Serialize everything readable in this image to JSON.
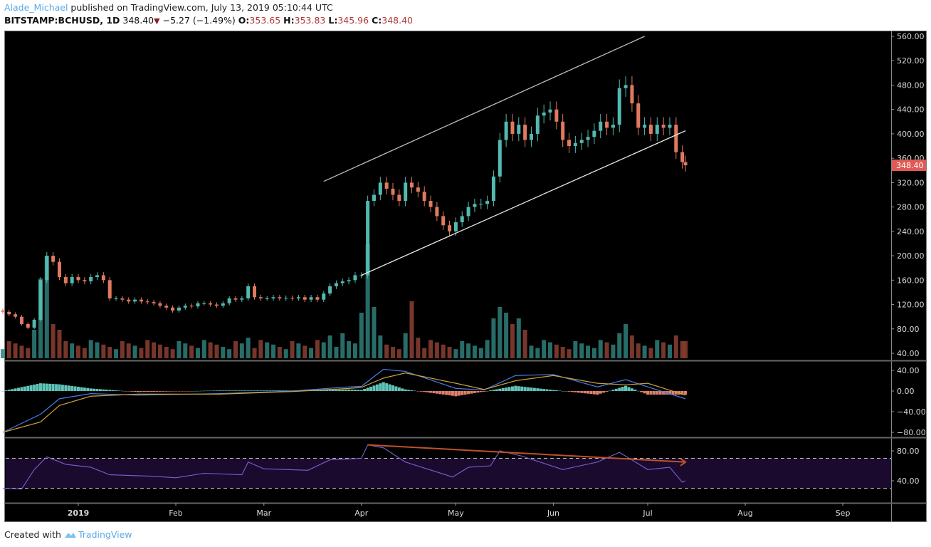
{
  "header": {
    "author": "Alade_Michael",
    "published": "published on TradingView.com, July 13, 2019 05:10:44 UTC",
    "symbol": "BITSTAMP:BCHUSD, 1D",
    "last": "348.40",
    "change": "−5.27 (−1.49%)",
    "o_label": "O:",
    "o": "353.65",
    "h_label": "H:",
    "h": "353.83",
    "l_label": "L:",
    "l": "345.96",
    "c_label": "C:",
    "c": "348.40",
    "down_icon": "triangle-down"
  },
  "footer": {
    "created_with": "Created with",
    "brand": "TradingView"
  },
  "chart_data": {
    "type": "candlestick",
    "title": "BITSTAMP:BCHUSD, 1D",
    "colors": {
      "up": "#53b9b0",
      "down": "#e07a5f",
      "background": "#000000",
      "last_price_tag": "#e05a55",
      "macd": "#4a7be8",
      "signal": "#c9a13a",
      "rsi": "#7b5fd0",
      "rsi_band": "#1a0a2e",
      "divergence": "#c0502a"
    },
    "ylim": [
      40,
      560
    ],
    "y_ticks": [
      "560.00",
      "520.00",
      "480.00",
      "440.00",
      "400.00",
      "360.00",
      "320.00",
      "280.00",
      "240.00",
      "200.00",
      "160.00",
      "120.00",
      "80.00",
      "40.00"
    ],
    "last_price_label": "348.40",
    "x_ticks": [
      {
        "label": "2019",
        "date": "2019-01-01"
      },
      {
        "label": "Feb",
        "date": "2019-02-01"
      },
      {
        "label": "Mar",
        "date": "2019-03-01"
      },
      {
        "label": "Apr",
        "date": "2019-04-01"
      },
      {
        "label": "May",
        "date": "2019-05-01"
      },
      {
        "label": "Jun",
        "date": "2019-06-01"
      },
      {
        "label": "Jul",
        "date": "2019-07-01"
      },
      {
        "label": "Aug",
        "date": "2019-08-01"
      },
      {
        "label": "Sep",
        "date": "2019-09-01"
      }
    ],
    "closes": [
      [
        "2018-12-08",
        108
      ],
      [
        "2018-12-10",
        104
      ],
      [
        "2018-12-12",
        100
      ],
      [
        "2018-12-14",
        88
      ],
      [
        "2018-12-16",
        82
      ],
      [
        "2018-12-18",
        95
      ],
      [
        "2018-12-20",
        160
      ],
      [
        "2018-12-22",
        200
      ],
      [
        "2018-12-24",
        190
      ],
      [
        "2018-12-26",
        165
      ],
      [
        "2018-12-28",
        155
      ],
      [
        "2018-12-30",
        165
      ],
      [
        "2019-01-01",
        160
      ],
      [
        "2019-01-03",
        158
      ],
      [
        "2019-01-05",
        165
      ],
      [
        "2019-01-07",
        168
      ],
      [
        "2019-01-09",
        160
      ],
      [
        "2019-01-11",
        130
      ],
      [
        "2019-01-13",
        130
      ],
      [
        "2019-01-15",
        128
      ],
      [
        "2019-01-17",
        125
      ],
      [
        "2019-01-19",
        128
      ],
      [
        "2019-01-21",
        125
      ],
      [
        "2019-01-23",
        124
      ],
      [
        "2019-01-25",
        122
      ],
      [
        "2019-01-27",
        118
      ],
      [
        "2019-01-29",
        115
      ],
      [
        "2019-01-31",
        110
      ],
      [
        "2019-02-02",
        115
      ],
      [
        "2019-02-04",
        118
      ],
      [
        "2019-02-06",
        117
      ],
      [
        "2019-02-08",
        122
      ],
      [
        "2019-02-10",
        122
      ],
      [
        "2019-02-12",
        120
      ],
      [
        "2019-02-14",
        118
      ],
      [
        "2019-02-16",
        122
      ],
      [
        "2019-02-18",
        130
      ],
      [
        "2019-02-20",
        128
      ],
      [
        "2019-02-22",
        130
      ],
      [
        "2019-02-24",
        150
      ],
      [
        "2019-02-26",
        132
      ],
      [
        "2019-02-28",
        130
      ],
      [
        "2019-03-02",
        130
      ],
      [
        "2019-03-04",
        132
      ],
      [
        "2019-03-06",
        130
      ],
      [
        "2019-03-08",
        131
      ],
      [
        "2019-03-10",
        130
      ],
      [
        "2019-03-12",
        132
      ],
      [
        "2019-03-14",
        128
      ],
      [
        "2019-03-16",
        132
      ],
      [
        "2019-03-18",
        128
      ],
      [
        "2019-03-20",
        138
      ],
      [
        "2019-03-22",
        150
      ],
      [
        "2019-03-24",
        155
      ],
      [
        "2019-03-26",
        158
      ],
      [
        "2019-03-28",
        160
      ],
      [
        "2019-03-30",
        168
      ],
      [
        "2019-04-01",
        168
      ],
      [
        "2019-04-03",
        290
      ],
      [
        "2019-04-05",
        300
      ],
      [
        "2019-04-07",
        320
      ],
      [
        "2019-04-09",
        310
      ],
      [
        "2019-04-11",
        300
      ],
      [
        "2019-04-13",
        290
      ],
      [
        "2019-04-15",
        320
      ],
      [
        "2019-04-17",
        312
      ],
      [
        "2019-04-19",
        305
      ],
      [
        "2019-04-21",
        290
      ],
      [
        "2019-04-23",
        280
      ],
      [
        "2019-04-25",
        265
      ],
      [
        "2019-04-27",
        250
      ],
      [
        "2019-04-29",
        240
      ],
      [
        "2019-05-01",
        255
      ],
      [
        "2019-05-03",
        265
      ],
      [
        "2019-05-05",
        280
      ],
      [
        "2019-05-07",
        285
      ],
      [
        "2019-05-09",
        285
      ],
      [
        "2019-05-11",
        290
      ],
      [
        "2019-05-13",
        330
      ],
      [
        "2019-05-15",
        390
      ],
      [
        "2019-05-17",
        420
      ],
      [
        "2019-05-19",
        400
      ],
      [
        "2019-05-21",
        415
      ],
      [
        "2019-05-23",
        390
      ],
      [
        "2019-05-25",
        400
      ],
      [
        "2019-05-27",
        430
      ],
      [
        "2019-05-29",
        435
      ],
      [
        "2019-05-31",
        440
      ],
      [
        "2019-06-02",
        420
      ],
      [
        "2019-06-04",
        390
      ],
      [
        "2019-06-06",
        380
      ],
      [
        "2019-06-08",
        385
      ],
      [
        "2019-06-10",
        390
      ],
      [
        "2019-06-12",
        395
      ],
      [
        "2019-06-14",
        405
      ],
      [
        "2019-06-16",
        420
      ],
      [
        "2019-06-18",
        410
      ],
      [
        "2019-06-20",
        415
      ],
      [
        "2019-06-22",
        475
      ],
      [
        "2019-06-24",
        480
      ],
      [
        "2019-06-26",
        450
      ],
      [
        "2019-06-28",
        410
      ],
      [
        "2019-06-30",
        415
      ],
      [
        "2019-07-02",
        400
      ],
      [
        "2019-07-04",
        415
      ],
      [
        "2019-07-06",
        410
      ],
      [
        "2019-07-08",
        415
      ],
      [
        "2019-07-10",
        370
      ],
      [
        "2019-07-12",
        353.65
      ],
      [
        "2019-07-13",
        348.4
      ]
    ],
    "volume_relative": {
      "2018-12-18": 25,
      "2018-12-20": 70,
      "2018-12-22": 90,
      "2018-12-24": 30,
      "2018-12-26": 25,
      "2019-02-24": 18,
      "2019-03-22": 20,
      "2019-03-26": 22,
      "2019-04-01": 40,
      "2019-04-03": 100,
      "2019-04-05": 45,
      "2019-04-07": 20,
      "2019-04-15": 22,
      "2019-04-17": 50,
      "2019-04-19": 18,
      "2019-05-13": 35,
      "2019-05-15": 45,
      "2019-05-17": 40,
      "2019-05-19": 30,
      "2019-05-21": 35,
      "2019-05-23": 25,
      "2019-06-22": 22,
      "2019-06-24": 30,
      "2019-06-26": 20,
      "2019-07-10": 20,
      "2019-07-12": 15
    },
    "trendlines": [
      {
        "name": "channel-upper",
        "from": [
          "2019-03-20",
          322
        ],
        "to": [
          "2019-06-30",
          560
        ],
        "color": "#bdbdbd"
      },
      {
        "name": "channel-lower",
        "from": [
          "2019-04-01",
          168
        ],
        "to": [
          "2019-07-13",
          405
        ],
        "color": "#e8e8e8"
      }
    ],
    "macd": {
      "y_ticks": [
        "40.00",
        "0.00",
        "−40.00",
        "−80.00"
      ],
      "ylim": [
        -85,
        45
      ],
      "points": [
        [
          "2018-12-08",
          -80,
          -80
        ],
        [
          "2018-12-20",
          -45,
          -60
        ],
        [
          "2018-12-26",
          -15,
          -28
        ],
        [
          "2019-01-05",
          -5,
          -10
        ],
        [
          "2019-01-20",
          -8,
          -6
        ],
        [
          "2019-02-15",
          -5,
          -6
        ],
        [
          "2019-03-10",
          0,
          -1
        ],
        [
          "2019-03-28",
          8,
          5
        ],
        [
          "2019-04-01",
          9,
          7
        ],
        [
          "2019-04-08",
          42,
          25
        ],
        [
          "2019-04-15",
          38,
          35
        ],
        [
          "2019-05-01",
          5,
          15
        ],
        [
          "2019-05-10",
          2,
          3
        ],
        [
          "2019-05-20",
          30,
          20
        ],
        [
          "2019-06-01",
          32,
          30
        ],
        [
          "2019-06-15",
          8,
          15
        ],
        [
          "2019-06-24",
          22,
          12
        ],
        [
          "2019-07-01",
          8,
          15
        ],
        [
          "2019-07-13",
          -15,
          -8
        ]
      ]
    },
    "rsi": {
      "y_ticks": [
        "80.00",
        "40.00"
      ],
      "bands": [
        70,
        30
      ],
      "points": [
        [
          "2018-12-08",
          30
        ],
        [
          "2018-12-14",
          29
        ],
        [
          "2018-12-18",
          55
        ],
        [
          "2018-12-22",
          72
        ],
        [
          "2018-12-28",
          62
        ],
        [
          "2019-01-05",
          58
        ],
        [
          "2019-01-11",
          48
        ],
        [
          "2019-01-25",
          46
        ],
        [
          "2019-02-01",
          44
        ],
        [
          "2019-02-10",
          50
        ],
        [
          "2019-02-22",
          48
        ],
        [
          "2019-02-24",
          65
        ],
        [
          "2019-03-01",
          56
        ],
        [
          "2019-03-15",
          54
        ],
        [
          "2019-03-22",
          68
        ],
        [
          "2019-04-01",
          70
        ],
        [
          "2019-04-03",
          88
        ],
        [
          "2019-04-08",
          84
        ],
        [
          "2019-04-15",
          65
        ],
        [
          "2019-04-30",
          45
        ],
        [
          "2019-05-05",
          58
        ],
        [
          "2019-05-12",
          60
        ],
        [
          "2019-05-15",
          80
        ],
        [
          "2019-05-22",
          73
        ],
        [
          "2019-06-04",
          55
        ],
        [
          "2019-06-15",
          65
        ],
        [
          "2019-06-22",
          78
        ],
        [
          "2019-07-01",
          55
        ],
        [
          "2019-07-08",
          58
        ],
        [
          "2019-07-12",
          38
        ],
        [
          "2019-07-13",
          40
        ]
      ],
      "divergence_line": {
        "from": [
          "2019-04-03",
          88
        ],
        "to": [
          "2019-07-13",
          65
        ]
      }
    }
  }
}
